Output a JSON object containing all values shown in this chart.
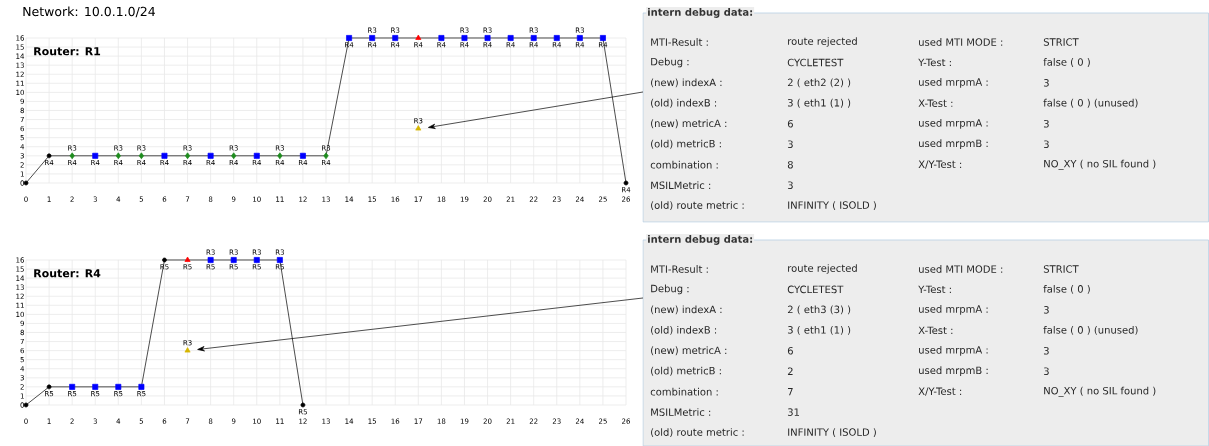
{
  "chart_data": [
    {
      "type": "line",
      "title": "Network: 10.0.1.0/24",
      "subtitle": "Router: R1",
      "xlim": [
        0,
        26
      ],
      "ylim": [
        0,
        16
      ],
      "xticks": [
        0,
        1,
        2,
        3,
        4,
        5,
        6,
        7,
        8,
        9,
        10,
        11,
        12,
        13,
        14,
        15,
        16,
        17,
        18,
        19,
        20,
        21,
        22,
        23,
        24,
        25,
        26
      ],
      "yticks": [
        0,
        1,
        2,
        3,
        4,
        5,
        6,
        7,
        8,
        9,
        10,
        11,
        12,
        13,
        14,
        15,
        16
      ],
      "grid": true,
      "series": [
        {
          "type": "line",
          "color": "#000000",
          "x": [
            0,
            1,
            2,
            3,
            4,
            5,
            6,
            7,
            8,
            9,
            10,
            11,
            12,
            13,
            14,
            15,
            16,
            17,
            18,
            19,
            20,
            21,
            22,
            23,
            24,
            25,
            26
          ],
          "values": [
            0,
            3,
            3,
            3,
            3,
            3,
            3,
            3,
            3,
            3,
            3,
            3,
            3,
            3,
            16,
            16,
            16,
            16,
            16,
            16,
            16,
            16,
            16,
            16,
            16,
            16,
            0
          ],
          "value_labels": [
            null,
            "R4",
            "R4",
            "R4",
            "R4",
            "R4",
            "R4",
            "R4",
            "R4",
            "R4",
            "R4",
            "R4",
            "R4",
            "R4",
            "R4",
            "R4",
            "R4",
            "R4",
            "R4",
            "R4",
            "R4",
            "R4",
            "R4",
            "R4",
            "R4",
            "R4",
            "R4"
          ]
        },
        {
          "type": "scatter",
          "color": "#000000",
          "marker": "circle",
          "x": [
            0,
            1,
            26
          ],
          "values": [
            0,
            3,
            0
          ]
        },
        {
          "type": "scatter",
          "color": "#1e8c1e",
          "marker": "diamond",
          "x": [
            2,
            4,
            5,
            7,
            9,
            11,
            13
          ],
          "values": [
            3,
            3,
            3,
            3,
            3,
            3,
            3
          ]
        },
        {
          "type": "scatter",
          "color": "#0000ff",
          "marker": "square",
          "x": [
            3,
            6,
            8,
            10,
            12,
            14,
            15,
            16,
            18,
            19,
            20,
            21,
            22,
            23,
            24,
            25
          ],
          "values": [
            3,
            3,
            3,
            3,
            3,
            16,
            16,
            16,
            16,
            16,
            16,
            16,
            16,
            16,
            16,
            16
          ]
        },
        {
          "type": "scatter",
          "color": "#ff0000",
          "marker": "triangle",
          "x": [
            17
          ],
          "values": [
            16
          ]
        },
        {
          "type": "scatter",
          "color": "#d6b600",
          "marker": "triangle",
          "x": [
            17
          ],
          "values": [
            6
          ]
        }
      ],
      "annotations": [
        {
          "text": "R3",
          "x": 2,
          "y": 3
        },
        {
          "text": "R3",
          "x": 4,
          "y": 3
        },
        {
          "text": "R3",
          "x": 5,
          "y": 3
        },
        {
          "text": "R3",
          "x": 7,
          "y": 3
        },
        {
          "text": "R3",
          "x": 9,
          "y": 3
        },
        {
          "text": "R3",
          "x": 11,
          "y": 3
        },
        {
          "text": "R3",
          "x": 13,
          "y": 3
        },
        {
          "text": "R3",
          "x": 15,
          "y": 16
        },
        {
          "text": "R3",
          "x": 16,
          "y": 16
        },
        {
          "text": "R3",
          "x": 19,
          "y": 16
        },
        {
          "text": "R3",
          "x": 20,
          "y": 16
        },
        {
          "text": "R3",
          "x": 22,
          "y": 16
        },
        {
          "text": "R3",
          "x": 24,
          "y": 16
        },
        {
          "text": "R3",
          "x": 17,
          "y": 6
        }
      ]
    },
    {
      "type": "other",
      "title": "intern debug data:",
      "annotations": [
        "MTI-Result :",
        "route rejected",
        "Debug :",
        "CYCLETEST",
        "(new) indexA :",
        "2 ( eth2 (2) )",
        "(old) indexB :",
        "3 ( eth1 (1) )",
        "(new) metricA :",
        "6",
        "(old) metricB :",
        "3",
        "combination :",
        "8",
        "MSILMetric :",
        "3",
        "(old) route metric :",
        "INFINITY ( ISOLD )",
        "used MTI MODE :",
        "STRICT",
        "Y-Test :",
        "false ( 0 )",
        "used mrpmA :",
        "3",
        "X-Test :",
        "false ( 0 ) (unused)",
        "used mrpmA :",
        "3",
        "used mrpmB :",
        "3",
        "X/Y-Test :",
        "NO_XY ( no SIL found )"
      ]
    },
    {
      "type": "line",
      "subtitle": "Router: R4",
      "xlim": [
        0,
        26
      ],
      "ylim": [
        0,
        16
      ],
      "xticks": [
        0,
        1,
        2,
        3,
        4,
        5,
        6,
        7,
        8,
        9,
        10,
        11,
        12,
        13,
        14,
        15,
        16,
        17,
        18,
        19,
        20,
        21,
        22,
        23,
        24,
        25,
        26
      ],
      "yticks": [
        0,
        1,
        2,
        3,
        4,
        5,
        6,
        7,
        8,
        9,
        10,
        11,
        12,
        13,
        14,
        15,
        16
      ],
      "grid": true,
      "series": [
        {
          "type": "line",
          "color": "#000000",
          "x": [
            0,
            1,
            2,
            3,
            4,
            5,
            6,
            7,
            8,
            9,
            10,
            11,
            12
          ],
          "values": [
            0,
            2,
            2,
            2,
            2,
            2,
            16,
            16,
            16,
            16,
            16,
            16,
            0
          ],
          "value_labels": [
            null,
            "R5",
            "R5",
            "R5",
            "R5",
            "R5",
            "R5",
            "R5",
            "R5",
            "R5",
            "R5",
            "R5",
            "R5"
          ]
        },
        {
          "type": "scatter",
          "color": "#000000",
          "marker": "circle",
          "x": [
            0,
            1,
            6,
            12
          ],
          "values": [
            0,
            2,
            16,
            0
          ]
        },
        {
          "type": "scatter",
          "color": "#0000ff",
          "marker": "square",
          "x": [
            2,
            3,
            4,
            5,
            8,
            9,
            10,
            11
          ],
          "values": [
            2,
            2,
            2,
            2,
            16,
            16,
            16,
            16
          ]
        },
        {
          "type": "scatter",
          "color": "#ff0000",
          "marker": "triangle",
          "x": [
            7
          ],
          "values": [
            16
          ]
        },
        {
          "type": "scatter",
          "color": "#d6b600",
          "marker": "triangle",
          "x": [
            7
          ],
          "values": [
            6
          ]
        }
      ],
      "annotations": [
        {
          "text": "R3",
          "x": 8,
          "y": 16
        },
        {
          "text": "R3",
          "x": 9,
          "y": 16
        },
        {
          "text": "R3",
          "x": 10,
          "y": 16
        },
        {
          "text": "R3",
          "x": 11,
          "y": 16
        },
        {
          "text": "R3",
          "x": 7,
          "y": 6
        }
      ]
    },
    {
      "type": "other",
      "title": "intern debug data:",
      "annotations": [
        "MTI-Result :",
        "route rejected",
        "Debug :",
        "CYCLETEST",
        "(new) indexA :",
        "2 ( eth3 (3) )",
        "(old) indexB :",
        "3 ( eth1 (1) )",
        "(new) metricA :",
        "6",
        "(old) metricB :",
        "2",
        "combination :",
        "7",
        "MSILMetric :",
        "31",
        "(old) route metric :",
        "INFINITY ( ISOLD )",
        "used MTI MODE :",
        "STRICT",
        "Y-Test :",
        "false ( 0 )",
        "used mrpmA :",
        "3",
        "X-Test :",
        "false ( 0 ) (unused)",
        "used mrpmA :",
        "3",
        "used mrpmB :",
        "3",
        "X/Y-Test :",
        "NO_XY ( no SIL found )"
      ]
    }
  ]
}
